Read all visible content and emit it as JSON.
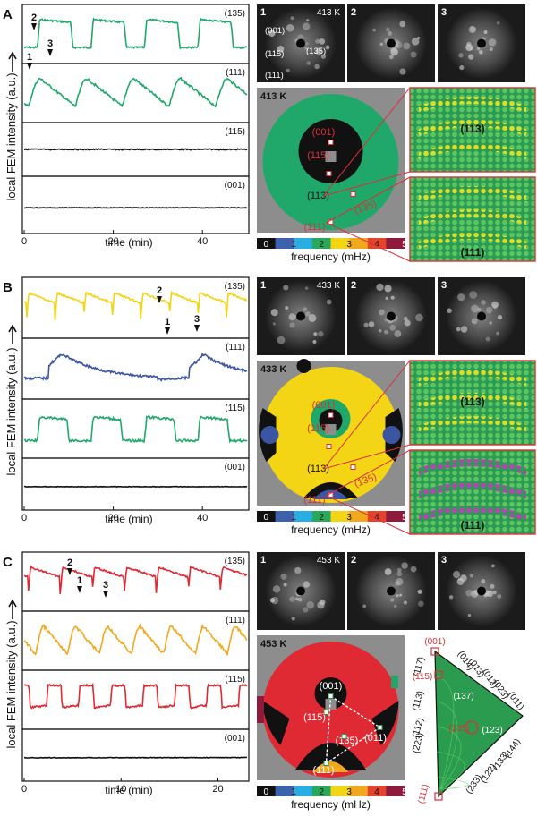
{
  "colors": {
    "green": "#1fa86a",
    "yellow": "#f3d515",
    "blue": "#3c55a3",
    "red": "#df2a33",
    "orange": "#f2a81d",
    "black": "#111111",
    "gray": "#8d8d8d",
    "red_label": "#d8323a"
  },
  "common": {
    "ylabel": "local FEM intensity (a.u.)",
    "xlabel": "time (min)",
    "freq_label": "frequency (mHz)",
    "colorbar_ticks": [
      "0",
      "1",
      "2",
      "3",
      "4",
      "5"
    ],
    "colorbar_colors": [
      "#111111",
      "#3c62ad",
      "#28aee2",
      "#28a85a",
      "#f3d515",
      "#f2a81d",
      "#e5442c",
      "#8e1b3c"
    ]
  },
  "panels": [
    {
      "letter": "A",
      "temp": "413 K",
      "xticks": [
        "0",
        "20",
        "40"
      ],
      "xmax": 50,
      "trace_labels": [
        "(135)",
        "(111)",
        "(115)",
        "(001)"
      ],
      "trace_colors": [
        "#1fa86a",
        "#1fa86a",
        "#111111",
        "#111111"
      ],
      "markers": [
        "1",
        "2",
        "3"
      ],
      "snapshot_labels": [
        "1",
        "2",
        "3"
      ],
      "snapshot_annotations": [
        "(001)",
        "(115)",
        "(135)",
        "(111)"
      ],
      "map_temp": "413 K",
      "map_labels_red": [
        "(001)",
        "(115)",
        "(135)",
        "(111)"
      ],
      "map_labels_black": [
        "(113)"
      ],
      "inset_labels": [
        "(113)",
        "(111)"
      ]
    },
    {
      "letter": "B",
      "temp": "433 K",
      "xticks": [
        "0",
        "20",
        "40"
      ],
      "xmax": 50,
      "trace_labels": [
        "(135)",
        "(111)",
        "(115)",
        "(001)"
      ],
      "trace_colors": [
        "#f3d515",
        "#3c55a3",
        "#1fa86a",
        "#111111"
      ],
      "markers": [
        "1",
        "2",
        "3"
      ],
      "snapshot_labels": [
        "1",
        "2",
        "3"
      ],
      "map_temp": "433 K",
      "map_labels_red": [
        "(001)",
        "(115)",
        "(135)",
        "(111)"
      ],
      "map_labels_black": [
        "(113)"
      ],
      "inset_labels": [
        "(113)",
        "(111)"
      ]
    },
    {
      "letter": "C",
      "temp": "453 K",
      "xticks": [
        "0",
        "10",
        "20"
      ],
      "xmax": 23,
      "trace_labels": [
        "(135)",
        "(111)",
        "(115)",
        "(001)"
      ],
      "trace_colors": [
        "#df2a33",
        "#f2a81d",
        "#df2a33",
        "#111111"
      ],
      "markers": [
        "1",
        "2",
        "3"
      ],
      "snapshot_labels": [
        "1",
        "2",
        "3"
      ],
      "map_temp": "453 K",
      "map_labels_white": [
        "(001)",
        "(115)",
        "(135)",
        "(011)",
        "(111)"
      ],
      "triangle_labels_black": [
        "(117)",
        "(113)",
        "(112)",
        "(223)",
        "(014)",
        "(013)",
        "(012)",
        "(023)",
        "(011)",
        "(137)",
        "(123)",
        "(144)",
        "(133)",
        "(122)",
        "(233)"
      ],
      "triangle_labels_red": [
        "(001)",
        "(115)",
        "(135)",
        "(111)"
      ]
    }
  ]
}
